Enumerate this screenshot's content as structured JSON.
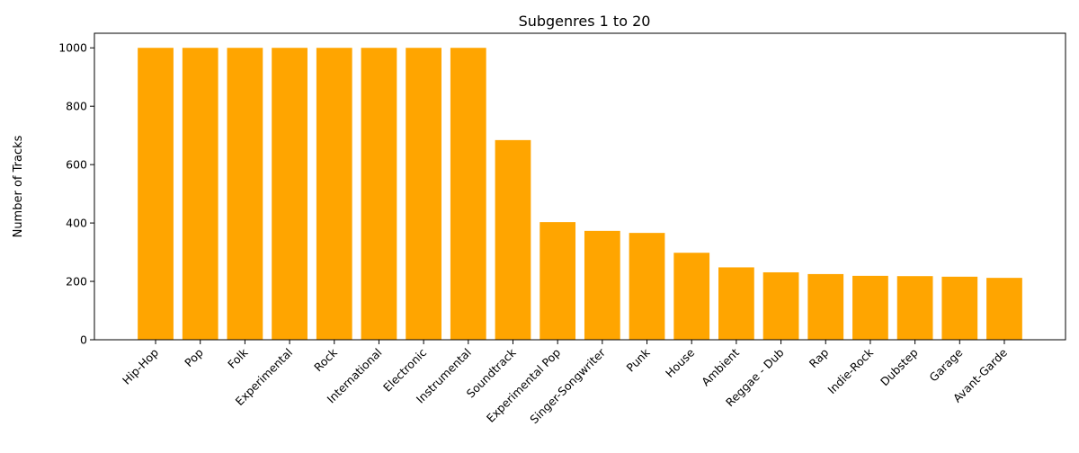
{
  "chart_data": {
    "type": "bar",
    "title": "Subgenres 1 to 20",
    "xlabel": "",
    "ylabel": "Number of Tracks",
    "ylim": [
      0,
      1050
    ],
    "yticks": [
      0,
      200,
      400,
      600,
      800,
      1000
    ],
    "grid": false,
    "legend": "none",
    "bar_color": "#FFA500",
    "categories": [
      "Hip-Hop",
      "Pop",
      "Folk",
      "Experimental",
      "Rock",
      "International",
      "Electronic",
      "Instrumental",
      "Soundtrack",
      "Experimental Pop",
      "Singer-Songwriter",
      "Punk",
      "House",
      "Ambient",
      "Reggae - Dub",
      "Rap",
      "Indie-Rock",
      "Dubstep",
      "Garage",
      "Avant-Garde"
    ],
    "values": [
      1000,
      1000,
      1000,
      1000,
      1000,
      1000,
      1000,
      1000,
      684,
      403,
      373,
      366,
      298,
      248,
      231,
      225,
      219,
      218,
      216,
      212
    ]
  }
}
